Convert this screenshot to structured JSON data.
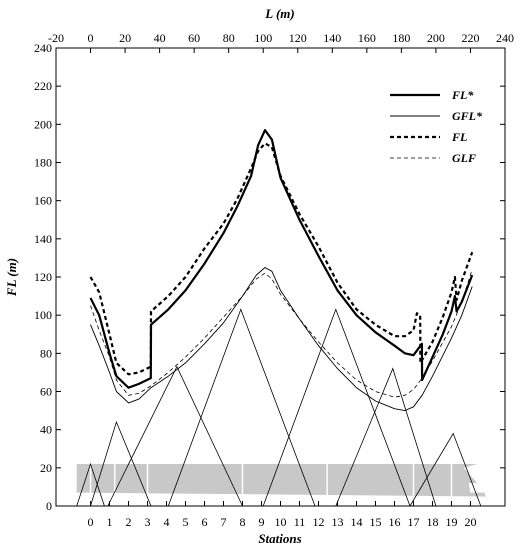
{
  "chart_data": {
    "type": "line",
    "xlabel_top": "L (m)",
    "xlabel_bottom": "Stations",
    "ylabel": "FL (m)",
    "xlim_top": [
      -20,
      240
    ],
    "x_ticks_top": [
      -20,
      0,
      20,
      40,
      60,
      80,
      100,
      120,
      140,
      160,
      180,
      200,
      220,
      240
    ],
    "ylim": [
      0,
      240
    ],
    "y_ticks": [
      0,
      20,
      40,
      60,
      80,
      100,
      120,
      140,
      160,
      180,
      200,
      220,
      240
    ],
    "stations": [
      "0",
      "1",
      "2",
      "3",
      "4",
      "5",
      "6",
      "7",
      "8",
      "9",
      "10",
      "11",
      "12",
      "13",
      "14",
      "15",
      "16",
      "17",
      "18",
      "19",
      "20"
    ],
    "station_x": [
      0,
      11,
      22,
      33,
      44,
      55,
      66,
      77,
      88,
      99,
      110,
      121,
      132,
      143,
      154,
      165,
      176,
      187,
      198,
      209,
      220
    ],
    "grid": false,
    "legend_position": "top-right",
    "series": [
      {
        "name": "FL*",
        "style": "thick-solid",
        "x": [
          0,
          5,
          11,
          15,
          22,
          28,
          34.9,
          35,
          45,
          55,
          66,
          77,
          85,
          93,
          97,
          101,
          105,
          110,
          121,
          132,
          143,
          154,
          165,
          176,
          182,
          187,
          191.9,
          192,
          198,
          204,
          209,
          211,
          212,
          215,
          218,
          221
        ],
        "y": [
          109,
          100,
          80,
          68,
          62,
          64,
          67,
          95,
          103,
          113,
          127,
          143,
          157,
          173,
          189,
          197,
          192,
          172,
          150,
          131,
          113,
          100,
          91,
          84,
          80,
          79,
          85,
          66,
          78,
          90,
          102,
          110,
          102,
          107,
          114,
          121
        ]
      },
      {
        "name": "GFL*",
        "style": "thin-solid",
        "x": [
          0,
          5,
          11,
          15,
          22,
          28,
          35,
          45,
          55,
          66,
          77,
          88,
          96,
          101,
          105,
          110,
          121,
          132,
          143,
          154,
          165,
          176,
          182,
          187,
          192,
          198,
          209,
          215,
          221
        ],
        "y": [
          95,
          84,
          70,
          60,
          54,
          56,
          62,
          68,
          75,
          85,
          96,
          110,
          121,
          125,
          123,
          113,
          98,
          84,
          72,
          62,
          55,
          51,
          50,
          52,
          58,
          68,
          88,
          100,
          115
        ]
      },
      {
        "name": "FL",
        "style": "thick-dashed",
        "x": [
          0,
          5,
          11,
          15,
          22,
          28,
          34.9,
          35,
          45,
          55,
          66,
          77,
          85,
          93,
          97,
          101,
          105,
          110,
          121,
          132,
          143,
          154,
          165,
          176,
          182,
          187,
          189,
          190.9,
          191,
          198,
          204,
          209,
          211,
          212,
          215,
          221
        ],
        "y": [
          120,
          112,
          90,
          75,
          69,
          70,
          73,
          102,
          110,
          120,
          135,
          148,
          161,
          177,
          186,
          190,
          188,
          173,
          153,
          136,
          117,
          103,
          95,
          89,
          89,
          92,
          101,
          100,
          75,
          86,
          99,
          112,
          120,
          108,
          118,
          133
        ]
      },
      {
        "name": "GLF",
        "style": "thin-dashed",
        "x": [
          0,
          5,
          11,
          15,
          22,
          28,
          35,
          45,
          55,
          66,
          77,
          88,
          96,
          101,
          105,
          110,
          121,
          132,
          143,
          154,
          165,
          176,
          182,
          187,
          192,
          198,
          209,
          215,
          221
        ],
        "y": [
          105,
          92,
          78,
          66,
          58,
          59,
          63,
          70,
          78,
          88,
          99,
          110,
          119,
          122,
          119,
          111,
          98,
          86,
          75,
          66,
          60,
          57,
          58,
          61,
          67,
          76,
          94,
          107,
          124
        ]
      }
    ],
    "triangles": [
      {
        "x": [
          -8,
          0,
          8
        ],
        "y": [
          0,
          22,
          0
        ]
      },
      {
        "x": [
          0,
          15,
          35
        ],
        "y": [
          0,
          44,
          0
        ]
      },
      {
        "x": [
          10,
          50,
          88
        ],
        "y": [
          0,
          73,
          0
        ]
      },
      {
        "x": [
          45,
          87,
          130
        ],
        "y": [
          0,
          103,
          0
        ]
      },
      {
        "x": [
          100,
          142,
          185
        ],
        "y": [
          0,
          103,
          0
        ]
      },
      {
        "x": [
          142,
          175,
          200
        ],
        "y": [
          0,
          72,
          0
        ]
      },
      {
        "x": [
          185,
          210,
          226
        ],
        "y": [
          0,
          38,
          0
        ]
      }
    ],
    "hull": {
      "x": [
        -8,
        224,
        216,
        224,
        219,
        220,
        228,
        229,
        -8
      ],
      "y": [
        22,
        22,
        20,
        12,
        12,
        7,
        7,
        5,
        7
      ]
    },
    "hull_frames_x": [
      0,
      14,
      33,
      88,
      137,
      187,
      209
    ],
    "legend_entries": [
      "FL*",
      "GFL*",
      "FL",
      "GLF"
    ]
  }
}
